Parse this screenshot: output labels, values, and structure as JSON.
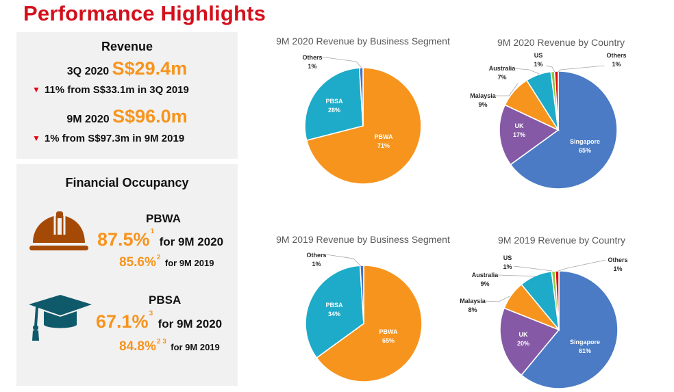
{
  "header": {
    "title": "Performance Highlights"
  },
  "revenue": {
    "heading": "Revenue",
    "q3": {
      "period": "3Q 2020",
      "value": "S$29.4m",
      "change_icon": "down-triangle",
      "change_text": "11% from S$33.1m in 3Q 2019"
    },
    "m9": {
      "period": "9M 2020",
      "value": "S$96.0m",
      "change_icon": "down-triangle",
      "change_text": "1% from S$97.3m in 9M 2019"
    }
  },
  "occupancy": {
    "heading": "Financial Occupancy",
    "pbwa": {
      "icon": "hard-hat-icon",
      "label": "PBWA",
      "current_value": "87.5%",
      "current_note": "1",
      "current_period": "for 9M 2020",
      "prior_value": "85.6%",
      "prior_note": "2",
      "prior_period": "for 9M 2019"
    },
    "pbsa": {
      "icon": "graduation-cap-icon",
      "label": "PBSA",
      "current_value": "67.1%",
      "current_note": "3",
      "current_period": "for 9M 2020",
      "prior_value": "84.8%",
      "prior_note": "2 3",
      "prior_period": "for 9M 2019"
    }
  },
  "colors": {
    "title_red": "#d3101c",
    "highlight_orange": "#f7941d",
    "down_red": "#e30613",
    "hat_brown": "#a54a06",
    "cap_teal": "#0e5a6b",
    "pbwa": "#f7941d",
    "pbsa": "#1eabc9",
    "others_seg": "#4472c4",
    "singapore": "#4a7bc4",
    "uk": "#8559a5",
    "malaysia": "#f7941d",
    "australia": "#1eabc9",
    "us": "#8cc63f",
    "others_cty": "#e30613"
  },
  "chart_data": [
    {
      "type": "pie",
      "title": "9M 2020 Revenue by Business Segment",
      "labels": [
        "PBWA",
        "PBSA",
        "Others"
      ],
      "values": [
        71,
        28,
        1
      ],
      "label_text": [
        "71%",
        "28%",
        "1%"
      ],
      "colors": [
        "#f7941d",
        "#1eabc9",
        "#4472c4"
      ],
      "start": "12 o'clock",
      "direction": "clockwise"
    },
    {
      "type": "pie",
      "title": "9M 2020 Revenue by Country",
      "labels": [
        "Singapore",
        "UK",
        "Malaysia",
        "Australia",
        "US",
        "Others"
      ],
      "values": [
        65,
        17,
        9,
        7,
        1,
        1
      ],
      "label_text": [
        "65%",
        "17%",
        "9%",
        "7%",
        "1%",
        "1%"
      ],
      "colors": [
        "#4a7bc4",
        "#8559a5",
        "#f7941d",
        "#1eabc9",
        "#8cc63f",
        "#e30613"
      ],
      "start": "12 o'clock",
      "direction": "clockwise"
    },
    {
      "type": "pie",
      "title": "9M 2019 Revenue by Business Segment",
      "labels": [
        "PBWA",
        "PBSA",
        "Others"
      ],
      "values": [
        65,
        34,
        1
      ],
      "label_text": [
        "65%",
        "34%",
        "1%"
      ],
      "colors": [
        "#f7941d",
        "#1eabc9",
        "#4472c4"
      ],
      "start": "12 o'clock",
      "direction": "clockwise"
    },
    {
      "type": "pie",
      "title": "9M 2019 Revenue by Country",
      "labels": [
        "Singapore",
        "UK",
        "Malaysia",
        "Australia",
        "US",
        "Others"
      ],
      "values": [
        61,
        20,
        8,
        9,
        1,
        1
      ],
      "label_text": [
        "61%",
        "20%",
        "8%",
        "9%",
        "1%",
        "1%"
      ],
      "colors": [
        "#4a7bc4",
        "#8559a5",
        "#f7941d",
        "#1eabc9",
        "#8cc63f",
        "#e30613"
      ],
      "start": "12 o'clock",
      "direction": "clockwise"
    }
  ]
}
